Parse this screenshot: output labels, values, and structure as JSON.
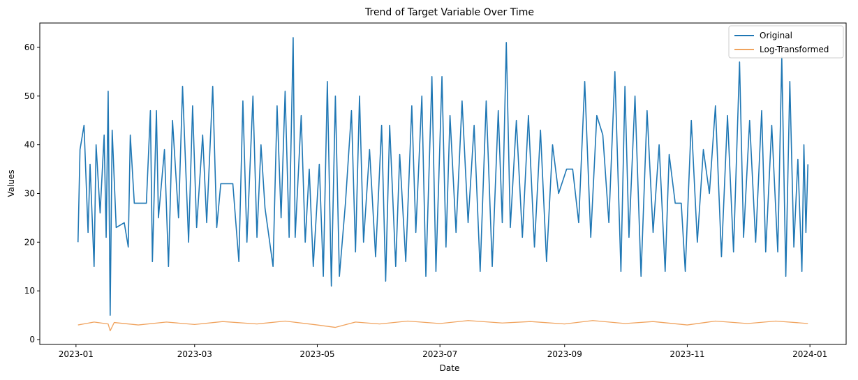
{
  "chart_data": {
    "type": "line",
    "title": "Trend of Target Variable Over Time",
    "xlabel": "Date",
    "ylabel": "Values",
    "xlim": [
      "2022-12-14",
      "2024-01-19"
    ],
    "ylim": [
      -1.0,
      65.0
    ],
    "xticks": [
      "2023-01",
      "2023-03",
      "2023-05",
      "2023-07",
      "2023-09",
      "2023-11",
      "2024-01"
    ],
    "yticks": [
      0,
      10,
      20,
      30,
      40,
      50,
      60
    ],
    "grid": false,
    "legend": "top-right",
    "series": [
      {
        "name": "Original",
        "color": "#1f77b4",
        "points": [
          [
            "2023-01-02",
            20
          ],
          [
            "2023-01-03",
            39
          ],
          [
            "2023-01-05",
            44
          ],
          [
            "2023-01-07",
            22
          ],
          [
            "2023-01-08",
            36
          ],
          [
            "2023-01-10",
            15
          ],
          [
            "2023-01-11",
            40
          ],
          [
            "2023-01-13",
            26
          ],
          [
            "2023-01-15",
            42
          ],
          [
            "2023-01-16",
            21
          ],
          [
            "2023-01-17",
            51
          ],
          [
            "2023-01-18",
            5
          ],
          [
            "2023-01-19",
            43
          ],
          [
            "2023-01-21",
            23
          ],
          [
            "2023-01-25",
            24
          ],
          [
            "2023-01-27",
            19
          ],
          [
            "2023-01-28",
            42
          ],
          [
            "2023-01-30",
            28
          ],
          [
            "2023-02-05",
            28
          ],
          [
            "2023-02-07",
            47
          ],
          [
            "2023-02-08",
            16
          ],
          [
            "2023-02-10",
            47
          ],
          [
            "2023-02-11",
            25
          ],
          [
            "2023-02-14",
            39
          ],
          [
            "2023-02-16",
            15
          ],
          [
            "2023-02-18",
            45
          ],
          [
            "2023-02-21",
            25
          ],
          [
            "2023-02-23",
            52
          ],
          [
            "2023-02-26",
            20
          ],
          [
            "2023-02-28",
            48
          ],
          [
            "2023-03-02",
            23
          ],
          [
            "2023-03-05",
            42
          ],
          [
            "2023-03-07",
            24
          ],
          [
            "2023-03-10",
            52
          ],
          [
            "2023-03-12",
            23
          ],
          [
            "2023-03-14",
            32
          ],
          [
            "2023-03-20",
            32
          ],
          [
            "2023-03-23",
            16
          ],
          [
            "2023-03-25",
            49
          ],
          [
            "2023-03-27",
            20
          ],
          [
            "2023-03-30",
            50
          ],
          [
            "2023-04-01",
            21
          ],
          [
            "2023-04-03",
            40
          ],
          [
            "2023-04-05",
            27
          ],
          [
            "2023-04-09",
            15
          ],
          [
            "2023-04-11",
            48
          ],
          [
            "2023-04-13",
            25
          ],
          [
            "2023-04-15",
            51
          ],
          [
            "2023-04-17",
            21
          ],
          [
            "2023-04-19",
            62
          ],
          [
            "2023-04-20",
            21
          ],
          [
            "2023-04-23",
            46
          ],
          [
            "2023-04-25",
            20
          ],
          [
            "2023-04-27",
            35
          ],
          [
            "2023-04-29",
            15
          ],
          [
            "2023-05-02",
            36
          ],
          [
            "2023-05-04",
            13
          ],
          [
            "2023-05-06",
            53
          ],
          [
            "2023-05-08",
            11
          ],
          [
            "2023-05-10",
            50
          ],
          [
            "2023-05-12",
            13
          ],
          [
            "2023-05-15",
            28
          ],
          [
            "2023-05-18",
            47
          ],
          [
            "2023-05-20",
            18
          ],
          [
            "2023-05-22",
            50
          ],
          [
            "2023-05-24",
            20
          ],
          [
            "2023-05-27",
            39
          ],
          [
            "2023-05-30",
            17
          ],
          [
            "2023-06-02",
            44
          ],
          [
            "2023-06-04",
            12
          ],
          [
            "2023-06-06",
            44
          ],
          [
            "2023-06-09",
            15
          ],
          [
            "2023-06-11",
            38
          ],
          [
            "2023-06-14",
            16
          ],
          [
            "2023-06-17",
            48
          ],
          [
            "2023-06-19",
            22
          ],
          [
            "2023-06-22",
            50
          ],
          [
            "2023-06-24",
            13
          ],
          [
            "2023-06-27",
            54
          ],
          [
            "2023-06-29",
            14
          ],
          [
            "2023-07-02",
            54
          ],
          [
            "2023-07-04",
            19
          ],
          [
            "2023-07-06",
            46
          ],
          [
            "2023-07-09",
            22
          ],
          [
            "2023-07-12",
            49
          ],
          [
            "2023-07-15",
            24
          ],
          [
            "2023-07-18",
            44
          ],
          [
            "2023-07-21",
            14
          ],
          [
            "2023-07-24",
            49
          ],
          [
            "2023-07-27",
            15
          ],
          [
            "2023-07-30",
            47
          ],
          [
            "2023-08-01",
            24
          ],
          [
            "2023-08-03",
            61
          ],
          [
            "2023-08-05",
            23
          ],
          [
            "2023-08-08",
            45
          ],
          [
            "2023-08-11",
            21
          ],
          [
            "2023-08-14",
            46
          ],
          [
            "2023-08-17",
            19
          ],
          [
            "2023-08-20",
            43
          ],
          [
            "2023-08-23",
            16
          ],
          [
            "2023-08-26",
            40
          ],
          [
            "2023-08-29",
            30
          ],
          [
            "2023-09-02",
            35
          ],
          [
            "2023-09-05",
            35
          ],
          [
            "2023-09-08",
            24
          ],
          [
            "2023-09-11",
            53
          ],
          [
            "2023-09-14",
            21
          ],
          [
            "2023-09-17",
            46
          ],
          [
            "2023-09-20",
            42
          ],
          [
            "2023-09-23",
            24
          ],
          [
            "2023-09-26",
            55
          ],
          [
            "2023-09-29",
            14
          ],
          [
            "2023-10-01",
            52
          ],
          [
            "2023-10-03",
            21
          ],
          [
            "2023-10-06",
            50
          ],
          [
            "2023-10-09",
            13
          ],
          [
            "2023-10-12",
            47
          ],
          [
            "2023-10-15",
            22
          ],
          [
            "2023-10-18",
            40
          ],
          [
            "2023-10-21",
            14
          ],
          [
            "2023-10-23",
            38
          ],
          [
            "2023-10-26",
            28
          ],
          [
            "2023-10-29",
            28
          ],
          [
            "2023-10-31",
            14
          ],
          [
            "2023-11-03",
            45
          ],
          [
            "2023-11-06",
            20
          ],
          [
            "2023-11-09",
            39
          ],
          [
            "2023-11-12",
            30
          ],
          [
            "2023-11-15",
            48
          ],
          [
            "2023-11-18",
            17
          ],
          [
            "2023-11-21",
            46
          ],
          [
            "2023-11-24",
            18
          ],
          [
            "2023-11-27",
            57
          ],
          [
            "2023-11-29",
            21
          ],
          [
            "2023-12-02",
            45
          ],
          [
            "2023-12-05",
            20
          ],
          [
            "2023-12-08",
            47
          ],
          [
            "2023-12-10",
            18
          ],
          [
            "2023-12-13",
            44
          ],
          [
            "2023-12-16",
            18
          ],
          [
            "2023-12-18",
            58
          ],
          [
            "2023-12-20",
            13
          ],
          [
            "2023-12-22",
            53
          ],
          [
            "2023-12-24",
            19
          ],
          [
            "2023-12-26",
            37
          ],
          [
            "2023-12-28",
            14
          ],
          [
            "2023-12-29",
            40
          ],
          [
            "2023-12-30",
            22
          ],
          [
            "2023-12-31",
            36
          ]
        ]
      },
      {
        "name": "Log-Transformed",
        "color": "#f0a35e",
        "points": [
          [
            "2023-01-02",
            3.0
          ],
          [
            "2023-01-10",
            3.6
          ],
          [
            "2023-01-17",
            3.2
          ],
          [
            "2023-01-18",
            1.8
          ],
          [
            "2023-01-20",
            3.5
          ],
          [
            "2023-02-01",
            3.0
          ],
          [
            "2023-02-15",
            3.6
          ],
          [
            "2023-03-01",
            3.1
          ],
          [
            "2023-03-15",
            3.7
          ],
          [
            "2023-04-01",
            3.2
          ],
          [
            "2023-04-15",
            3.8
          ],
          [
            "2023-05-01",
            3.0
          ],
          [
            "2023-05-10",
            2.5
          ],
          [
            "2023-05-20",
            3.6
          ],
          [
            "2023-06-01",
            3.2
          ],
          [
            "2023-06-15",
            3.8
          ],
          [
            "2023-07-01",
            3.3
          ],
          [
            "2023-07-15",
            3.9
          ],
          [
            "2023-08-01",
            3.4
          ],
          [
            "2023-08-15",
            3.7
          ],
          [
            "2023-09-01",
            3.2
          ],
          [
            "2023-09-15",
            3.9
          ],
          [
            "2023-10-01",
            3.3
          ],
          [
            "2023-10-15",
            3.7
          ],
          [
            "2023-11-01",
            3.0
          ],
          [
            "2023-11-15",
            3.8
          ],
          [
            "2023-12-01",
            3.3
          ],
          [
            "2023-12-15",
            3.8
          ],
          [
            "2023-12-31",
            3.3
          ]
        ]
      }
    ]
  }
}
